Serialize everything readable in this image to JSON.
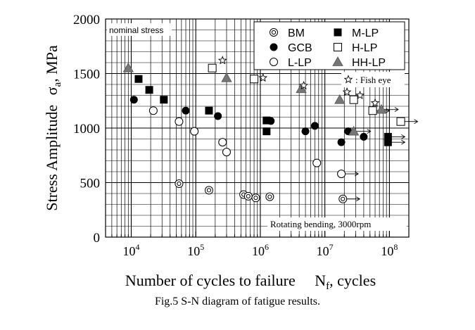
{
  "caption": "Fig.5 S-N diagram of fatigue results.",
  "chart_data": {
    "type": "scatter",
    "xscale": "log",
    "xlabel": "Number of cycles to failure",
    "xlabel_symbol": "N",
    "xlabel_subscript": "f",
    "xlabel_unit": ", cycles",
    "ylabel": "Stress Amplitude",
    "ylabel_symbol": "σ",
    "ylabel_subscript": "a",
    "ylabel_unit": ",  MPa",
    "xlim": [
      4000,
      200000000
    ],
    "ylim": [
      0,
      2000
    ],
    "yticks": [
      0,
      500,
      1000,
      1500,
      2000
    ],
    "xtick_exponents": [
      4,
      5,
      6,
      7,
      8
    ],
    "xtick_base": "10",
    "grid": true,
    "annotations": {
      "top_left": "nominal stress",
      "bottom_right": "Rotating bending, 3000rpm",
      "fish_eye": ": Fish eye"
    },
    "legend_placement": "top-right",
    "legend": [
      {
        "name": "BM",
        "marker": "double-circle"
      },
      {
        "name": "M-LP",
        "marker": "filled-square"
      },
      {
        "name": "GCB",
        "marker": "filled-circle"
      },
      {
        "name": "H-LP",
        "marker": "open-square"
      },
      {
        "name": "L-LP",
        "marker": "open-circle"
      },
      {
        "name": "HH-LP",
        "marker": "filled-triangle"
      }
    ],
    "series": [
      {
        "name": "BM",
        "marker": "double-circle",
        "points": [
          {
            "x": 55000,
            "y": 490
          },
          {
            "x": 160000,
            "y": 430
          },
          {
            "x": 550000,
            "y": 390
          },
          {
            "x": 650000,
            "y": 375
          },
          {
            "x": 850000,
            "y": 360
          },
          {
            "x": 1400000,
            "y": 370
          },
          {
            "x": 19000000,
            "y": 350,
            "runout": true
          }
        ]
      },
      {
        "name": "GCB",
        "marker": "filled-circle",
        "points": [
          {
            "x": 11000,
            "y": 1260
          },
          {
            "x": 70000,
            "y": 1160
          },
          {
            "x": 220000,
            "y": 1110
          },
          {
            "x": 1450000,
            "y": 1065
          },
          {
            "x": 5000000,
            "y": 970
          },
          {
            "x": 7000000,
            "y": 1020
          },
          {
            "x": 18000000,
            "y": 870
          },
          {
            "x": 23000000,
            "y": 970
          },
          {
            "x": 40000000,
            "y": 920
          }
        ]
      },
      {
        "name": "L-LP",
        "marker": "open-circle",
        "points": [
          {
            "x": 22000,
            "y": 1160
          },
          {
            "x": 55000,
            "y": 1060
          },
          {
            "x": 95000,
            "y": 970
          },
          {
            "x": 260000,
            "y": 870
          },
          {
            "x": 300000,
            "y": 780
          },
          {
            "x": 7500000,
            "y": 680
          },
          {
            "x": 18000000,
            "y": 580,
            "runout": true
          }
        ]
      },
      {
        "name": "M-LP",
        "marker": "filled-square",
        "points": [
          {
            "x": 13000,
            "y": 1450
          },
          {
            "x": 19000,
            "y": 1350
          },
          {
            "x": 32000,
            "y": 1260
          },
          {
            "x": 160000,
            "y": 1160
          },
          {
            "x": 1250000,
            "y": 1070
          },
          {
            "x": 1250000,
            "y": 970
          },
          {
            "x": 95000000,
            "y": 920,
            "runout": true
          },
          {
            "x": 95000000,
            "y": 870,
            "runout": true
          }
        ]
      },
      {
        "name": "H-LP",
        "marker": "open-square",
        "points": [
          {
            "x": 180000,
            "y": 1550
          },
          {
            "x": 800000,
            "y": 1450
          },
          {
            "x": 28000000,
            "y": 1260
          },
          {
            "x": 55000000,
            "y": 1160,
            "runout": true
          },
          {
            "x": 150000000,
            "y": 1060,
            "runout": true
          }
        ]
      },
      {
        "name": "HH-LP",
        "marker": "filled-triangle",
        "points": [
          {
            "x": 9000,
            "y": 1550
          },
          {
            "x": 300000,
            "y": 1460
          },
          {
            "x": 4300000,
            "y": 1360
          },
          {
            "x": 17000000,
            "y": 1260
          },
          {
            "x": 28000000,
            "y": 970,
            "runout": true
          },
          {
            "x": 75000000,
            "y": 1170,
            "runout": true
          }
        ]
      },
      {
        "name": "Fish eye",
        "marker": "open-star",
        "points": [
          {
            "x": 260000,
            "y": 1620
          },
          {
            "x": 1100000,
            "y": 1460
          },
          {
            "x": 4700000,
            "y": 1390
          },
          {
            "x": 22000000,
            "y": 1330
          },
          {
            "x": 35000000,
            "y": 1300
          },
          {
            "x": 60000000,
            "y": 1230
          }
        ]
      }
    ]
  }
}
